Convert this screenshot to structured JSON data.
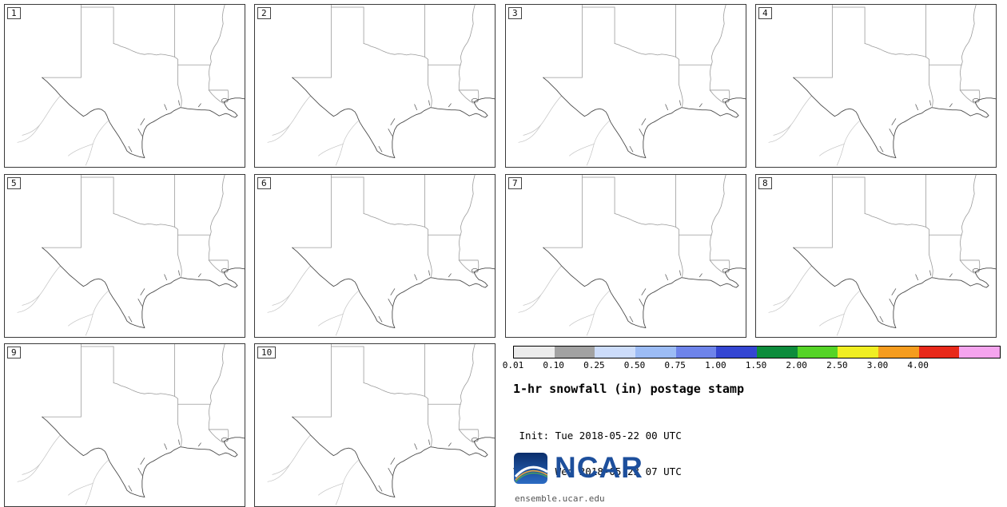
{
  "figure": {
    "title": "1-hr snowfall (in) postage stamp",
    "init_line": " Init: Tue 2018-05-22 00 UTC",
    "valid_line": "Valid: Wed 2018-05-23 07 UTC",
    "footer": "ensemble.ucar.edu",
    "logo_text": "NCAR"
  },
  "panels": {
    "members": [
      "1",
      "2",
      "3",
      "4",
      "5",
      "6",
      "7",
      "8",
      "9",
      "10"
    ]
  },
  "colorbar": {
    "ticks": [
      "0.01",
      "0.10",
      "0.25",
      "0.50",
      "0.75",
      "1.00",
      "1.50",
      "2.00",
      "2.50",
      "3.00",
      "4.00"
    ],
    "colors": [
      "#ececec",
      "#a2a2a2",
      "#ccdcfa",
      "#9cbcf5",
      "#6e84ea",
      "#3446d2",
      "#0d8c3c",
      "#55d427",
      "#f0ee22",
      "#f59c1e",
      "#e8291a",
      "#f5a4ee"
    ],
    "border_color": "#000000"
  },
  "map": {
    "coast_color": "#4a4a4a",
    "state_color": "#9b9b9b",
    "mexico_color": "#c2c2c2"
  }
}
